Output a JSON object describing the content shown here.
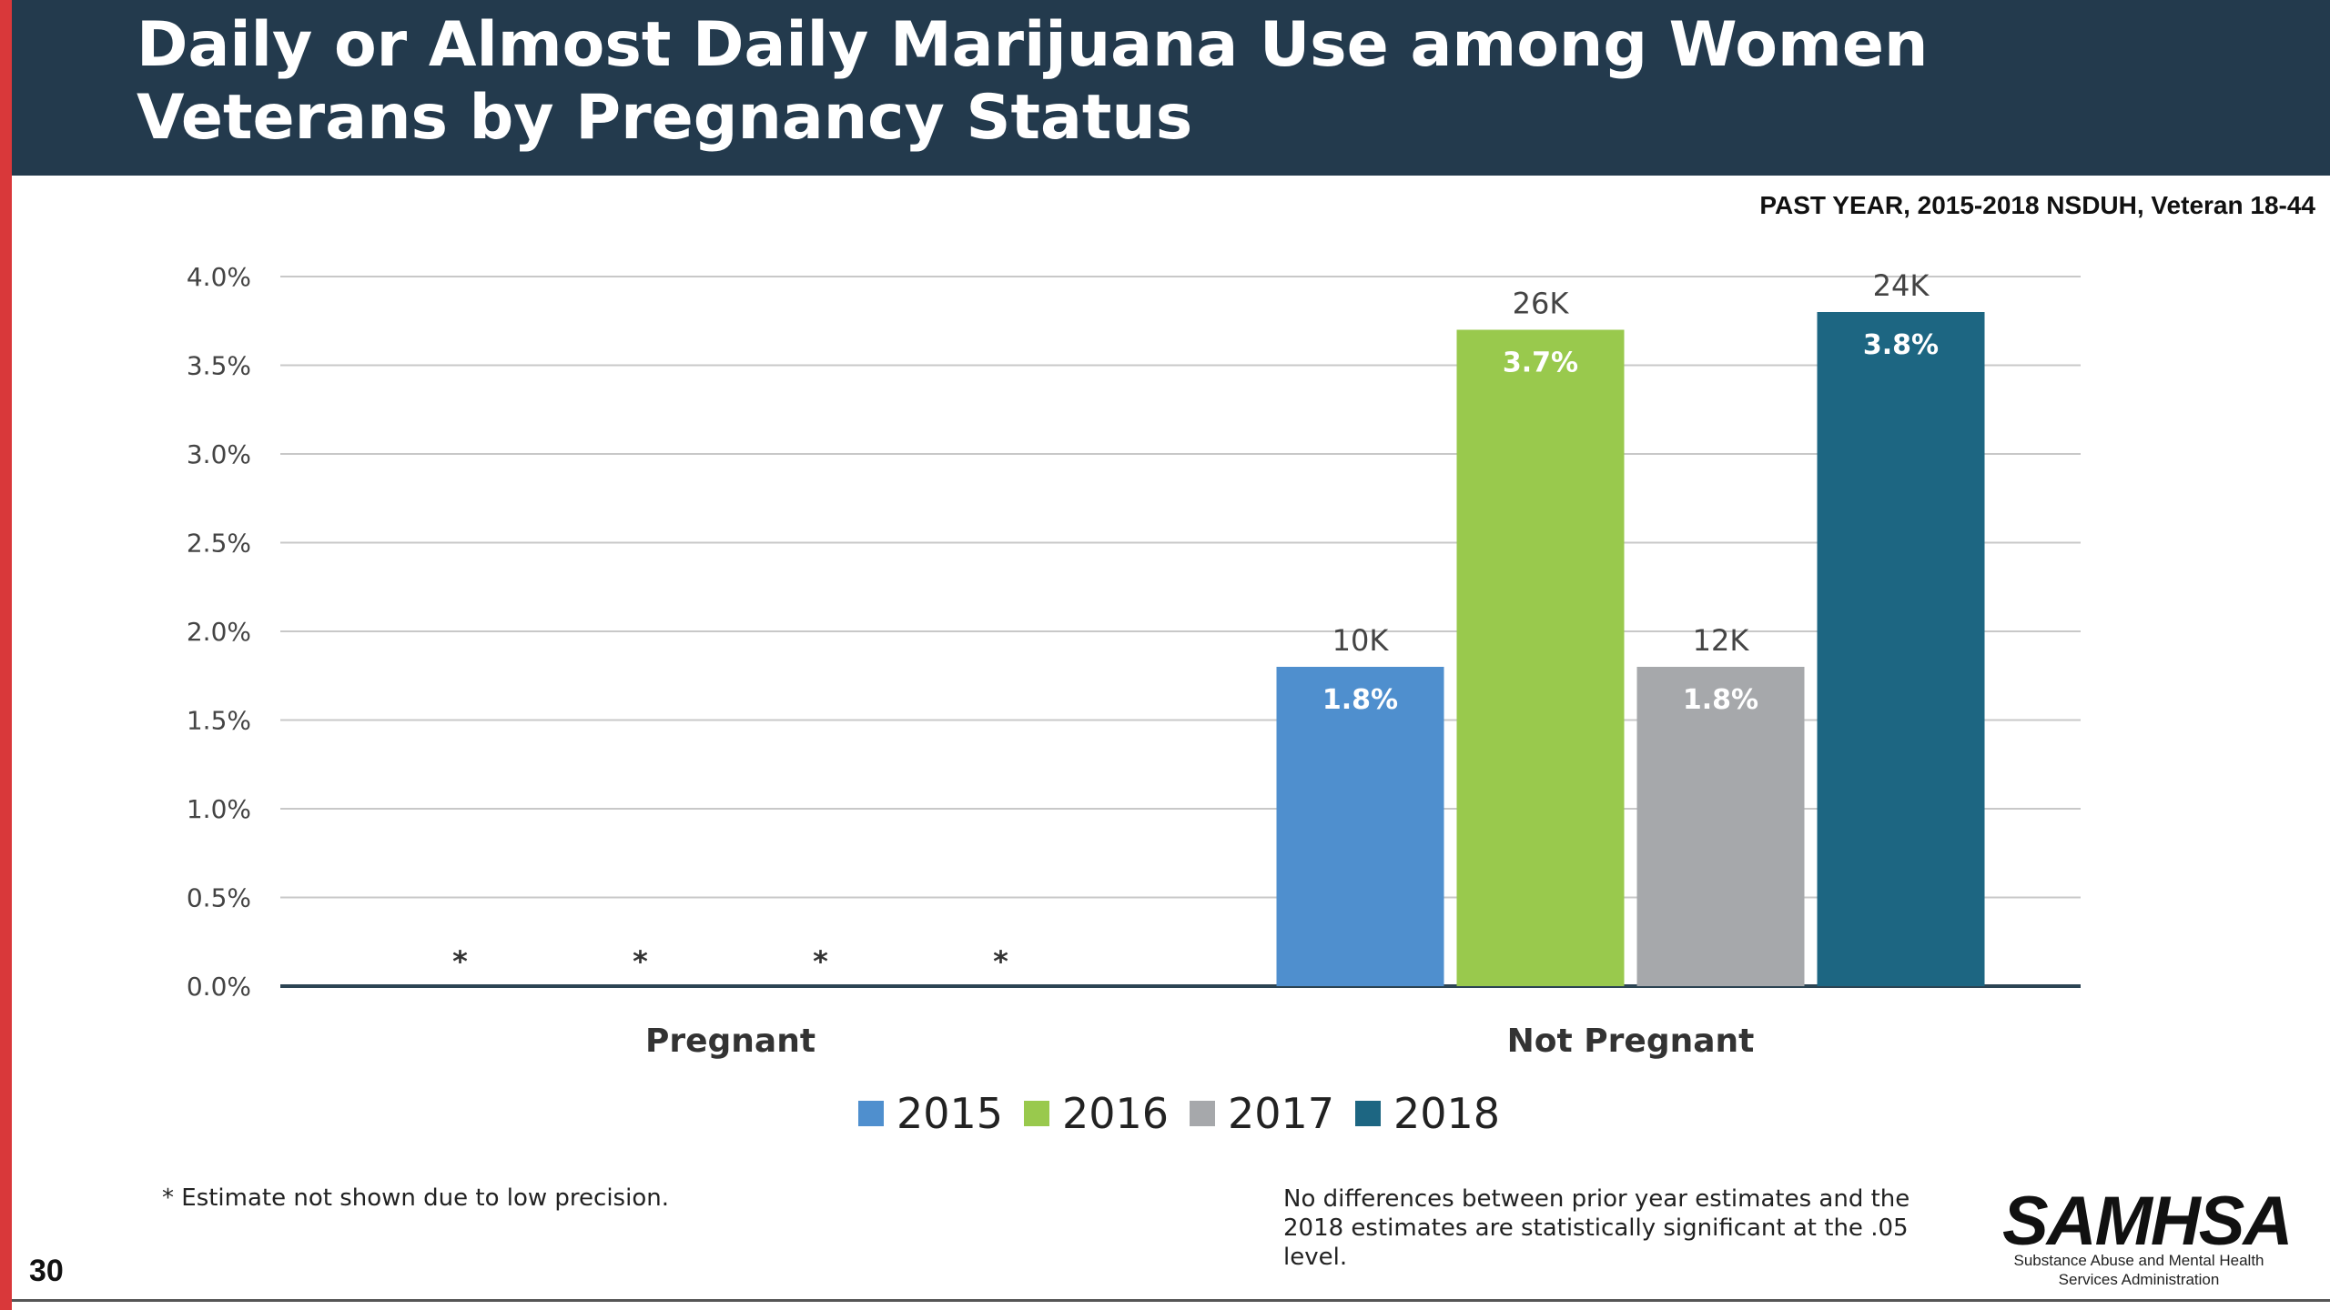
{
  "slide": {
    "title": "Daily or Almost Daily Marijuana Use among Women Veterans by Pregnancy Status",
    "subtitle": "PAST YEAR, 2015-2018  NSDUH, Veteran 18-44",
    "footnote_left": "* Estimate not shown due to low precision.",
    "footnote_right": "No differences between prior year estimates and the 2018 estimates are statistically significant at the .05 level.",
    "page_number": "30",
    "logo": {
      "name": "SAMHSA",
      "tagline_line1": "Substance Abuse and Mental Health",
      "tagline_line2": "Services Administration"
    }
  },
  "chart_data": {
    "type": "bar",
    "categories": [
      "Pregnant",
      "Not Pregnant"
    ],
    "ylim": [
      0,
      4.0
    ],
    "yticks": [
      "0.0%",
      "0.5%",
      "1.0%",
      "1.5%",
      "2.0%",
      "2.5%",
      "3.0%",
      "3.5%",
      "4.0%"
    ],
    "grid": true,
    "legend_position": "bottom",
    "series": [
      {
        "name": "2015",
        "color": "#4f8fce",
        "values": [
          null,
          1.8
        ],
        "labels": [
          "1.8%"
        ],
        "counts": [
          "10K"
        ]
      },
      {
        "name": "2016",
        "color": "#99c94d",
        "values": [
          null,
          3.7
        ],
        "labels": [
          "3.7%"
        ],
        "counts": [
          "26K"
        ]
      },
      {
        "name": "2017",
        "color": "#a6a8ab",
        "values": [
          null,
          1.8
        ],
        "labels": [
          "1.8%"
        ],
        "counts": [
          "12K"
        ]
      },
      {
        "name": "2018",
        "color": "#1d6682",
        "values": [
          null,
          3.8
        ],
        "labels": [
          "3.8%"
        ],
        "counts": [
          "24K"
        ]
      }
    ],
    "suppressed_marker": "*"
  }
}
